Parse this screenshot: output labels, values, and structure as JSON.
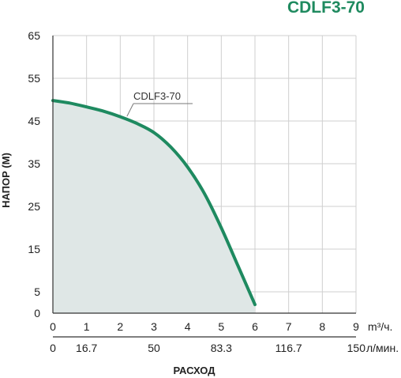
{
  "chart_data": {
    "type": "area",
    "title": "CDLF3-70",
    "ylabel": "НАПОР (М)",
    "xlabel": "РАСХОД",
    "x_unit_primary": "m³/ч.",
    "x_unit_secondary": "л/мин.",
    "xlim": [
      0,
      9
    ],
    "ylim": [
      0,
      65
    ],
    "grid": true,
    "x_ticks": [
      "0",
      "1",
      "2",
      "3",
      "4",
      "5",
      "6",
      "7",
      "8",
      "9"
    ],
    "x_ticks_secondary": [
      {
        "label": "0",
        "at": 0
      },
      {
        "label": "16.7",
        "at": 1
      },
      {
        "label": "50",
        "at": 3
      },
      {
        "label": "83.3",
        "at": 5
      },
      {
        "label": "116.7",
        "at": 7
      },
      {
        "label": "150",
        "at": 9
      }
    ],
    "y_ticks": [
      "0",
      "5",
      "15",
      "25",
      "35",
      "45",
      "55",
      "65"
    ],
    "series": [
      {
        "name": "CDLF3-70",
        "color": "#1e8a60",
        "fill": "#dfe7e6",
        "x": [
          0,
          0.5,
          1,
          1.5,
          2,
          2.5,
          3,
          3.5,
          4,
          4.5,
          5,
          5.5,
          6
        ],
        "y": [
          49.8,
          49.2,
          48.3,
          47.3,
          46,
          44.4,
          42.3,
          38.9,
          34.2,
          28,
          20,
          11,
          2
        ]
      }
    ]
  }
}
